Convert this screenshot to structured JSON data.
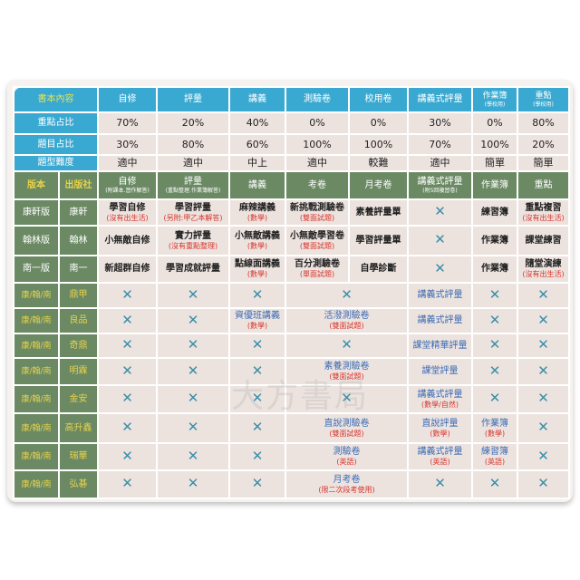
{
  "watermark": "大方書局",
  "top_header": {
    "label": "書本內容",
    "columns": [
      {
        "label": "自修"
      },
      {
        "label": "評量"
      },
      {
        "label": "講義"
      },
      {
        "label": "測驗卷"
      },
      {
        "label": "校用卷"
      },
      {
        "label": "講義式評量"
      },
      {
        "label": "作業簿",
        "sub": "(學校用)"
      },
      {
        "label": "重點",
        "sub": "(學校用)"
      }
    ]
  },
  "metrics": [
    {
      "label": "重點占比",
      "values": [
        "70%",
        "20%",
        "40%",
        "0%",
        "0%",
        "30%",
        "0%",
        "80%"
      ]
    },
    {
      "label": "題目占比",
      "values": [
        "30%",
        "80%",
        "60%",
        "100%",
        "100%",
        "70%",
        "100%",
        "20%"
      ]
    },
    {
      "label": "題型難度",
      "values": [
        "適中",
        "適中",
        "中上",
        "適中",
        "較難",
        "適中",
        "簡單",
        "簡單"
      ]
    }
  ],
  "sub_header": {
    "edition": "版本",
    "publisher": "出版社",
    "columns": [
      {
        "label": "自修",
        "sub": "(附課本.習作解答)"
      },
      {
        "label": "評量",
        "sub": "(重點整理.作業簿解答)"
      },
      {
        "label": "講義"
      },
      {
        "label": "考卷"
      },
      {
        "label": "月考卷"
      },
      {
        "label": "講義式評量",
        "sub": "(附5回複習卷)"
      },
      {
        "label": "作業簿"
      },
      {
        "label": "重點"
      }
    ]
  },
  "rows": [
    {
      "edition": "康軒版",
      "publisher": "康軒",
      "style": "main",
      "cells": [
        {
          "text": "學習自修",
          "note": "(沒有出生活)"
        },
        {
          "text": "學習評量",
          "note": "(另附:甲乙本解答)"
        },
        {
          "text": "麻辣講義",
          "note": "(數學)"
        },
        {
          "text": "新挑戰測驗卷",
          "note": "(雙面試題)"
        },
        {
          "text": "素養評量單"
        },
        {
          "x": true
        },
        {
          "text": "練習簿"
        },
        {
          "text": "重點複習",
          "note": "(沒有出生活)"
        }
      ]
    },
    {
      "edition": "翰林版",
      "publisher": "翰林",
      "style": "main",
      "cells": [
        {
          "text": "小無敵自修"
        },
        {
          "text": "實力評量",
          "note": "(沒有重點整理)"
        },
        {
          "text": "小無敵講義",
          "note": "(數學)"
        },
        {
          "text": "小無敵學習卷",
          "note": "(雙面試題)"
        },
        {
          "text": "學習評量單"
        },
        {
          "x": true
        },
        {
          "text": "作業簿"
        },
        {
          "text": "課堂練習"
        }
      ]
    },
    {
      "edition": "南一版",
      "publisher": "南一",
      "style": "main",
      "cells": [
        {
          "text": "新超群自修"
        },
        {
          "text": "學習成就評量"
        },
        {
          "text": "點線面講義",
          "note": "(數學)"
        },
        {
          "text": "百分測驗卷",
          "note": "(單面試題)"
        },
        {
          "text": "自學診斷"
        },
        {
          "x": true
        },
        {
          "text": "作業簿"
        },
        {
          "text": "隨堂演練",
          "note": "(沒有出生活)"
        }
      ]
    },
    {
      "edition": "康/翰/南",
      "publisher": "鼎甲",
      "style": "other",
      "cells": [
        {
          "x": true
        },
        {
          "x": true
        },
        {
          "x": true
        },
        {
          "x": true,
          "span": 2
        },
        {
          "text": "講義式評量"
        },
        {
          "x": true
        },
        {
          "x": true
        }
      ]
    },
    {
      "edition": "康/翰/南",
      "publisher": "良品",
      "style": "other",
      "cells": [
        {
          "x": true
        },
        {
          "x": true
        },
        {
          "text": "資優班講義",
          "note": "(數學)"
        },
        {
          "text": "活潑測驗卷",
          "note": "(雙面試題)",
          "span": 2
        },
        {
          "text": "講義式評量"
        },
        {
          "x": true
        },
        {
          "x": true
        }
      ]
    },
    {
      "edition": "康/翰/南",
      "publisher": "奇鼎",
      "style": "other",
      "cells": [
        {
          "x": true
        },
        {
          "x": true
        },
        {
          "x": true
        },
        {
          "x": true,
          "span": 2
        },
        {
          "text": "課堂精華評量"
        },
        {
          "x": true
        },
        {
          "x": true
        }
      ]
    },
    {
      "edition": "康/翰/南",
      "publisher": "明霖",
      "style": "other",
      "cells": [
        {
          "x": true
        },
        {
          "x": true
        },
        {
          "x": true
        },
        {
          "text": "素養測驗卷",
          "note": "(雙面試題)",
          "span": 2
        },
        {
          "text": "課堂評量"
        },
        {
          "x": true
        },
        {
          "x": true
        }
      ]
    },
    {
      "edition": "康/翰/南",
      "publisher": "金安",
      "style": "other",
      "cells": [
        {
          "x": true
        },
        {
          "x": true
        },
        {
          "x": true
        },
        {
          "x": true,
          "span": 2
        },
        {
          "text": "講義式評量",
          "note": "(數學/自然)"
        },
        {
          "x": true
        },
        {
          "x": true
        }
      ]
    },
    {
      "edition": "康/翰/南",
      "publisher": "高升鑫",
      "style": "other",
      "cells": [
        {
          "x": true
        },
        {
          "x": true
        },
        {
          "x": true
        },
        {
          "text": "直說測驗卷",
          "note": "(雙面試題)",
          "span": 2
        },
        {
          "text": "直說評量",
          "note": "(數學)"
        },
        {
          "text": "作業簿",
          "note": "(數學)"
        },
        {
          "x": true
        }
      ]
    },
    {
      "edition": "康/翰/南",
      "publisher": "瑞華",
      "style": "other",
      "cells": [
        {
          "x": true
        },
        {
          "x": true
        },
        {
          "x": true
        },
        {
          "text": "測驗卷",
          "note": "(英語)",
          "span": 2
        },
        {
          "text": "講義式評量",
          "note": "(英語)"
        },
        {
          "text": "練習簿",
          "note": "(英語)"
        },
        {
          "x": true
        }
      ]
    },
    {
      "edition": "康/翰/南",
      "publisher": "弘碁",
      "style": "other",
      "cells": [
        {
          "x": true
        },
        {
          "x": true
        },
        {
          "x": true
        },
        {
          "text": "月考卷",
          "note": "(限二次段考使用)",
          "span": 2
        },
        {
          "x": true
        },
        {
          "x": true
        },
        {
          "x": true
        }
      ]
    }
  ],
  "x_mark": "✕",
  "colors": {
    "header_blue": "#3aa9d1",
    "green": "#6b8a64",
    "yellow": "#e8d24a",
    "cell_bg": "#ece3df",
    "blue_text": "#3d6bb3",
    "red_note": "#d9342b",
    "x_mark": "#3a8fa8"
  }
}
